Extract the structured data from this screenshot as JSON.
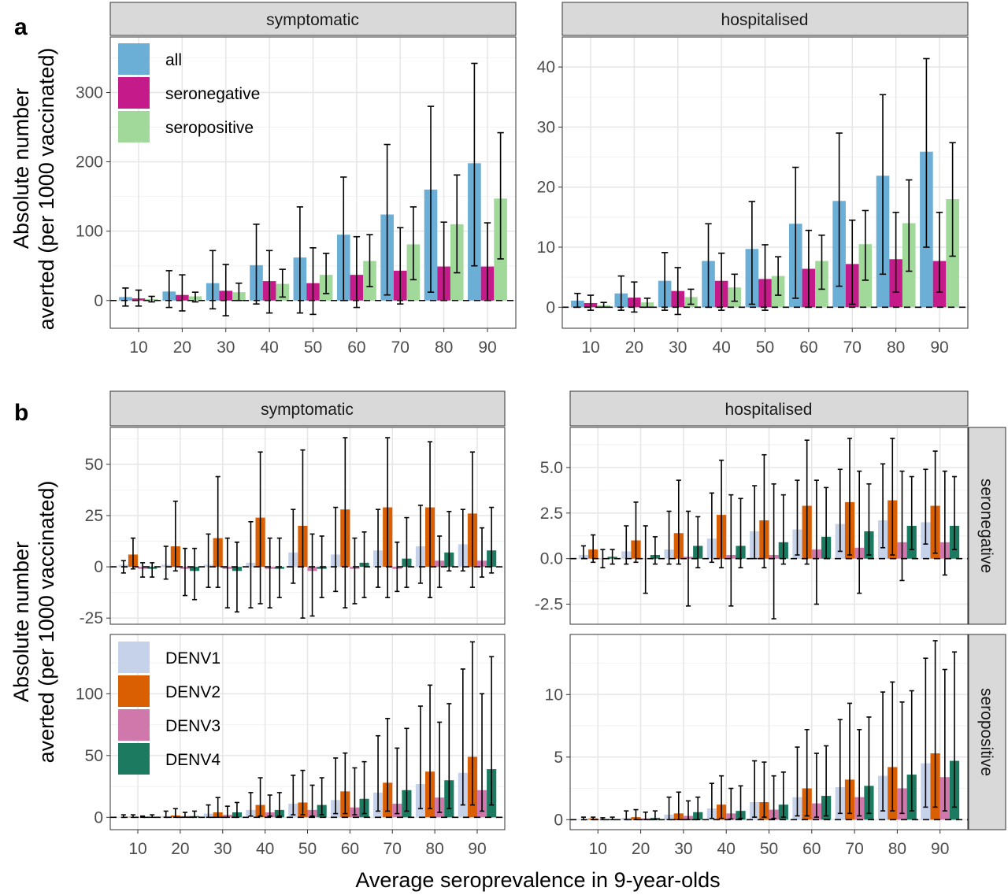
{
  "figure": {
    "panel_a_tag": "a",
    "panel_b_tag": "b",
    "ylabel_line1": "Absolute number",
    "ylabel_line2": "averted (per 1000 vaccinated)",
    "xlabel": "Average seroprevalence in 9-year-olds"
  },
  "colors": {
    "all": "#6BAED6",
    "seronegative": "#C51B8A",
    "seropositive": "#A1D99B",
    "DENV1": "#C6D1EA",
    "DENV2": "#D95F02",
    "DENV3": "#D078AC",
    "DENV4": "#1B7A5F"
  },
  "chart_data": [
    {
      "type": "bar",
      "panel": "a",
      "facet": "symptomatic",
      "x": [
        10,
        20,
        30,
        40,
        50,
        60,
        70,
        80,
        90
      ],
      "xlabel": "",
      "ylabel": "",
      "ylim": [
        -40,
        380
      ],
      "yticks": [
        0,
        100,
        200,
        300
      ],
      "baseline": 0,
      "grid": true,
      "legend": "top-left",
      "series": [
        {
          "name": "all",
          "color_key": "all",
          "values": [
            5,
            13,
            25,
            51,
            62,
            95,
            124,
            160,
            198
          ],
          "lower": [
            -8,
            -10,
            -12,
            -5,
            -18,
            0,
            8,
            12,
            50
          ],
          "upper": [
            18,
            43,
            72,
            110,
            135,
            178,
            225,
            280,
            342
          ]
        },
        {
          "name": "seronegative",
          "color_key": "seronegative",
          "values": [
            3,
            8,
            14,
            28,
            25,
            37,
            43,
            49,
            49
          ],
          "lower": [
            -8,
            -15,
            -22,
            -18,
            -20,
            -10,
            -5,
            0,
            0
          ],
          "upper": [
            15,
            37,
            52,
            72,
            76,
            92,
            105,
            113,
            112
          ]
        },
        {
          "name": "seropositive",
          "color_key": "seropositive",
          "values": [
            2,
            6,
            12,
            24,
            37,
            57,
            81,
            110,
            147
          ],
          "lower": [
            -2,
            -2,
            0,
            5,
            10,
            20,
            30,
            40,
            60
          ],
          "upper": [
            6,
            12,
            25,
            45,
            68,
            95,
            135,
            181,
            242
          ]
        }
      ]
    },
    {
      "type": "bar",
      "panel": "a",
      "facet": "hospitalised",
      "x": [
        10,
        20,
        30,
        40,
        50,
        60,
        70,
        80,
        90
      ],
      "xlabel": "",
      "ylabel": "",
      "ylim": [
        -3.5,
        45
      ],
      "yticks": [
        0,
        10,
        20,
        30,
        40
      ],
      "baseline": 0,
      "grid": true,
      "series": [
        {
          "name": "all",
          "color_key": "all",
          "values": [
            1.1,
            2.3,
            4.4,
            7.7,
            9.7,
            13.9,
            17.7,
            21.9,
            25.9
          ],
          "lower": [
            0,
            -0.5,
            -0.5,
            0,
            0.5,
            1.5,
            3.5,
            5.5,
            10
          ],
          "upper": [
            2.3,
            5.2,
            9.1,
            13.9,
            17.6,
            23.3,
            29,
            35.4,
            41.4
          ]
        },
        {
          "name": "seronegative",
          "color_key": "seronegative",
          "values": [
            0.7,
            1.6,
            2.7,
            4.4,
            4.7,
            6.4,
            7.2,
            8.0,
            7.7
          ],
          "lower": [
            -0.5,
            -0.8,
            -1.2,
            -0.5,
            -0.5,
            0,
            0.5,
            2.5,
            2.5
          ],
          "upper": [
            2,
            4.2,
            6.6,
            9,
            10.4,
            12.8,
            14.5,
            15.8,
            15.8
          ]
        },
        {
          "name": "seropositive",
          "color_key": "seropositive",
          "values": [
            0.3,
            0.8,
            1.7,
            3.3,
            5.2,
            7.7,
            10.5,
            14.0,
            18.0
          ],
          "lower": [
            0,
            0,
            0.5,
            1,
            2,
            3,
            4.5,
            6,
            8.5
          ],
          "upper": [
            0.8,
            1.5,
            3,
            5.5,
            8.4,
            12,
            16.1,
            21.2,
            27.4
          ]
        }
      ]
    },
    {
      "type": "bar",
      "panel": "b",
      "facet": "symptomatic",
      "row": "seronegative",
      "x": [
        10,
        20,
        30,
        40,
        50,
        60,
        70,
        80,
        90
      ],
      "ylim": [
        -28,
        68
      ],
      "yticks": [
        -25,
        0,
        25,
        50
      ],
      "baseline": 0,
      "grid": true,
      "series": [
        {
          "name": "DENV1",
          "color_key": "DENV1",
          "values": [
            1,
            1,
            1,
            2,
            7,
            6,
            8,
            10,
            11
          ],
          "lower": [
            -3,
            -6,
            -10,
            -20,
            -8,
            -12,
            -10,
            -8,
            -2
          ],
          "upper": [
            3,
            10,
            16,
            22,
            28,
            29,
            28,
            30,
            28
          ]
        },
        {
          "name": "DENV2",
          "color_key": "DENV2",
          "values": [
            6,
            10,
            14,
            24,
            20,
            28,
            29,
            29,
            26
          ],
          "lower": [
            -1,
            -2,
            -10,
            -18,
            -25,
            -20,
            -15,
            -15,
            -10
          ],
          "upper": [
            14,
            32,
            44,
            56,
            57,
            63,
            63,
            61,
            56
          ]
        },
        {
          "name": "DENV3",
          "color_key": "DENV3",
          "values": [
            -1,
            -1,
            -1,
            -1,
            -2,
            -1,
            -1,
            3,
            3
          ],
          "lower": [
            -5,
            -14,
            -20,
            -20,
            -24,
            -18,
            -12,
            -10,
            -5
          ],
          "upper": [
            2,
            9,
            14,
            14,
            16,
            14,
            12,
            15,
            19
          ]
        },
        {
          "name": "DENV4",
          "color_key": "DENV4",
          "values": [
            -1,
            -2,
            -2,
            -1,
            -1,
            2,
            4,
            7,
            8
          ],
          "lower": [
            -5,
            -16,
            -22,
            -15,
            -15,
            -15,
            -10,
            -2,
            -3
          ],
          "upper": [
            2,
            9,
            12,
            14,
            15,
            17,
            24,
            27,
            29
          ]
        }
      ]
    },
    {
      "type": "bar",
      "panel": "b",
      "facet": "hospitalised",
      "row": "seronegative",
      "x": [
        10,
        20,
        30,
        40,
        50,
        60,
        70,
        80,
        90
      ],
      "ylim": [
        -3.6,
        7.2
      ],
      "yticks": [
        -2.5,
        0.0,
        2.5,
        5.0
      ],
      "ytick_labels": [
        "-2.5",
        "0.0",
        "2.5",
        "5.0"
      ],
      "baseline": 0,
      "grid": true,
      "series": [
        {
          "name": "DENV1",
          "color_key": "DENV1",
          "values": [
            0.2,
            0.4,
            0.5,
            1.1,
            1.5,
            1.6,
            1.9,
            2.1,
            2.0
          ],
          "lower": [
            0,
            -0.3,
            -0.3,
            -0.2,
            0,
            0.2,
            0.4,
            0.6,
            0.8
          ],
          "upper": [
            0.7,
            1.8,
            2.6,
            3.6,
            4.0,
            4.3,
            4.9,
            5.2,
            4.9
          ]
        },
        {
          "name": "DENV2",
          "color_key": "DENV2",
          "values": [
            0.5,
            1.0,
            1.4,
            2.4,
            2.1,
            2.9,
            3.1,
            3.2,
            2.9
          ],
          "lower": [
            -0.2,
            -0.2,
            -0.3,
            -0.5,
            -0.5,
            -0.3,
            0.2,
            0.2,
            0.3
          ],
          "upper": [
            1.3,
            3.1,
            4.3,
            5.4,
            5.7,
            6.5,
            6.6,
            6.6,
            5.9
          ]
        },
        {
          "name": "DENV3",
          "color_key": "DENV3",
          "values": [
            0.0,
            0.0,
            0.1,
            0.2,
            0.2,
            0.5,
            0.6,
            0.9,
            0.9
          ],
          "lower": [
            -0.5,
            -1.9,
            -2.6,
            -2.6,
            -3.3,
            -2.5,
            -1.9,
            -1.2,
            -0.9
          ],
          "upper": [
            0.5,
            1.8,
            2.6,
            3.5,
            4.1,
            4.3,
            4.8,
            4.8,
            4.8
          ]
        },
        {
          "name": "DENV4",
          "color_key": "DENV4",
          "values": [
            0.1,
            0.2,
            0.7,
            0.7,
            0.9,
            1.2,
            1.5,
            1.8,
            1.8
          ],
          "lower": [
            -0.3,
            -0.3,
            -0.5,
            -0.5,
            -0.3,
            0,
            0.2,
            0.5,
            0.5
          ],
          "upper": [
            0.5,
            1.2,
            2.3,
            3.3,
            3.5,
            3.9,
            4.1,
            4.5,
            4.5
          ]
        }
      ]
    },
    {
      "type": "bar",
      "panel": "b",
      "facet": "symptomatic",
      "row": "seropositive",
      "x": [
        10,
        20,
        30,
        40,
        50,
        60,
        70,
        80,
        90
      ],
      "ylim": [
        -10,
        148
      ],
      "yticks": [
        0,
        50,
        100
      ],
      "baseline": 0,
      "grid": true,
      "legend": "top-left",
      "series": [
        {
          "name": "DENV1",
          "color_key": "DENV1",
          "values": [
            0.5,
            1,
            3,
            6,
            11,
            14,
            20,
            27,
            36
          ],
          "lower": [
            0,
            0,
            0,
            1,
            2,
            3,
            5,
            7,
            10
          ],
          "upper": [
            2,
            5,
            10,
            20,
            34,
            48,
            66,
            90,
            120
          ]
        },
        {
          "name": "DENV2",
          "color_key": "DENV2",
          "values": [
            0.5,
            1.5,
            4,
            10,
            12,
            21,
            28,
            37,
            49
          ],
          "lower": [
            0,
            0,
            0,
            1,
            2,
            3,
            5,
            7,
            10
          ],
          "upper": [
            2,
            7,
            16,
            32,
            38,
            52,
            80,
            107,
            142
          ]
        },
        {
          "name": "DENV3",
          "color_key": "DENV3",
          "values": [
            0.3,
            1,
            2,
            4,
            6,
            8,
            11,
            16,
            22
          ],
          "lower": [
            0,
            0,
            0,
            1,
            1,
            2,
            3,
            4,
            5
          ],
          "upper": [
            1,
            4,
            9,
            18,
            26,
            40,
            56,
            77,
            100
          ]
        },
        {
          "name": "DENV4",
          "color_key": "DENV4",
          "values": [
            0.5,
            1,
            4,
            6,
            10,
            15,
            22,
            30,
            39
          ],
          "lower": [
            0,
            0,
            0,
            1,
            2,
            3,
            5,
            7,
            10
          ],
          "upper": [
            2,
            5,
            12,
            20,
            32,
            45,
            72,
            92,
            130
          ]
        }
      ]
    },
    {
      "type": "bar",
      "panel": "b",
      "facet": "hospitalised",
      "row": "seropositive",
      "x": [
        10,
        20,
        30,
        40,
        50,
        60,
        70,
        80,
        90
      ],
      "ylim": [
        -0.8,
        14.8
      ],
      "yticks": [
        0,
        5,
        10
      ],
      "baseline": 0,
      "grid": true,
      "series": [
        {
          "name": "DENV1",
          "color_key": "DENV1",
          "values": [
            0.05,
            0.15,
            0.4,
            0.9,
            1.4,
            1.8,
            2.6,
            3.5,
            4.5
          ],
          "lower": [
            0,
            0,
            0,
            0.1,
            0.2,
            0.3,
            0.5,
            0.7,
            1.0
          ],
          "upper": [
            0.2,
            0.7,
            1.8,
            2.9,
            4.7,
            5.8,
            8.0,
            10.2,
            12.9
          ]
        },
        {
          "name": "DENV2",
          "color_key": "DENV2",
          "values": [
            0.1,
            0.2,
            0.5,
            1.2,
            1.4,
            2.5,
            3.2,
            4.2,
            5.3
          ],
          "lower": [
            0,
            0,
            0,
            0.1,
            0.2,
            0.3,
            0.5,
            0.7,
            1.0
          ],
          "upper": [
            0.2,
            0.8,
            2.2,
            3.5,
            4.6,
            7.2,
            9.3,
            11.0,
            14.3
          ]
        },
        {
          "name": "DENV3",
          "color_key": "DENV3",
          "values": [
            0.03,
            0.1,
            0.3,
            0.5,
            0.8,
            1.3,
            1.8,
            2.5,
            3.4
          ],
          "lower": [
            0,
            0,
            0,
            0.05,
            0.1,
            0.2,
            0.3,
            0.5,
            0.7
          ],
          "upper": [
            0.15,
            0.6,
            1.5,
            2.5,
            3.5,
            5.3,
            7.2,
            9.4,
            12.0
          ]
        },
        {
          "name": "DENV4",
          "color_key": "DENV4",
          "values": [
            0.05,
            0.15,
            0.6,
            0.7,
            1.2,
            1.9,
            2.7,
            3.6,
            4.7
          ],
          "lower": [
            0,
            0,
            0,
            0.1,
            0.2,
            0.3,
            0.5,
            0.7,
            1.0
          ],
          "upper": [
            0.2,
            0.7,
            1.8,
            2.7,
            3.8,
            5.9,
            8.2,
            10.3,
            13.4
          ]
        }
      ]
    }
  ],
  "strips": {
    "panel_a_left": "symptomatic",
    "panel_a_right": "hospitalised",
    "panel_b_left": "symptomatic",
    "panel_b_right": "hospitalised",
    "row_top": "seronegative",
    "row_bottom": "seropositive"
  },
  "legend_a": [
    "all",
    "seronegative",
    "seropositive"
  ],
  "legend_b": [
    "DENV1",
    "DENV2",
    "DENV3",
    "DENV4"
  ]
}
